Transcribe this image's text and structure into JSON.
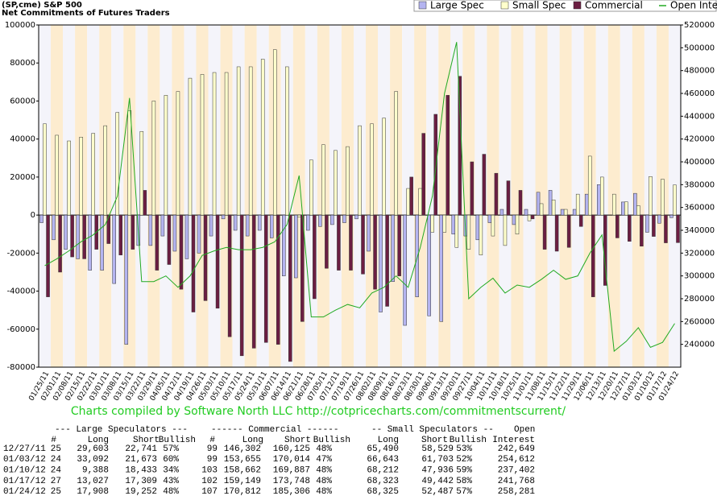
{
  "chart_data": {
    "type": "bar",
    "title": "(SP,cme) S&P 500",
    "subtitle": "Net Commitments of Futures Traders",
    "annotation": "Charts compiled by Software North LLC  http://cotpricecharts.com/commitmentscurrent/",
    "legend": "top-right",
    "categories": [
      "01/25/11",
      "02/01/11",
      "02/08/11",
      "02/15/11",
      "02/22/11",
      "03/01/11",
      "03/08/11",
      "03/15/11",
      "03/22/11",
      "03/29/11",
      "04/05/11",
      "04/12/11",
      "04/19/11",
      "04/26/11",
      "05/03/11",
      "05/10/11",
      "05/17/11",
      "05/24/11",
      "05/31/11",
      "06/07/11",
      "06/14/11",
      "06/21/11",
      "06/28/11",
      "07/05/11",
      "07/12/11",
      "07/19/11",
      "07/26/11",
      "08/02/11",
      "08/09/11",
      "08/16/11",
      "08/23/11",
      "08/30/11",
      "09/06/11",
      "09/13/11",
      "09/20/11",
      "09/27/11",
      "10/04/11",
      "10/11/11",
      "10/18/11",
      "10/25/11",
      "11/01/11",
      "11/08/11",
      "11/15/11",
      "11/22/11",
      "11/29/11",
      "12/06/11",
      "12/13/11",
      "12/20/11",
      "12/27/11",
      "01/03/12",
      "01/10/12",
      "01/17/12",
      "01/24/12"
    ],
    "series": [
      {
        "name": "Large Spec",
        "color": "#b4b4f0",
        "values": [
          -4000,
          -13000,
          -18000,
          -23000,
          -29000,
          -29000,
          -36000,
          -68000,
          -16000,
          -16000,
          -11000,
          -19000,
          -23000,
          -20000,
          -11000,
          -2000,
          -8000,
          -11000,
          -8000,
          -12000,
          -32000,
          -33000,
          -8000,
          -6000,
          -5000,
          -4000,
          -2000,
          -19000,
          -51000,
          -35000,
          -58000,
          -43000,
          -53000,
          -56000,
          -10000,
          -11000,
          -13000,
          -4000,
          3000,
          -5000,
          3000,
          12000,
          13000,
          3000,
          3000,
          11000,
          16000,
          0,
          6862,
          11419,
          -9045,
          -4282,
          -1344
        ]
      },
      {
        "name": "Small Spec",
        "color": "#ffffcc",
        "values": [
          48000,
          42000,
          39000,
          41000,
          43000,
          47000,
          54000,
          55000,
          44000,
          60000,
          63000,
          65000,
          72000,
          74000,
          75000,
          75000,
          78000,
          78000,
          82000,
          87000,
          78000,
          -1000,
          29000,
          37000,
          34000,
          36000,
          47000,
          48000,
          51000,
          65000,
          14000,
          14000,
          -9000,
          -9000,
          -17000,
          -18000,
          -21000,
          -11000,
          -16000,
          -10000,
          -3000,
          6000,
          8000,
          3000,
          11000,
          31000,
          20000,
          11000,
          6961,
          4940,
          20276,
          18881,
          15838
        ]
      },
      {
        "name": "Commercial",
        "color": "#6b1e42",
        "values": [
          -43000,
          -30000,
          -22000,
          -23000,
          -18000,
          -15000,
          -21000,
          -18000,
          13000,
          -29000,
          -26000,
          -39000,
          -51000,
          -45000,
          -49000,
          -64000,
          -74000,
          -70000,
          -67000,
          -68000,
          -77000,
          -56000,
          -44000,
          -28000,
          -29000,
          -29000,
          -31000,
          -39000,
          -48000,
          -32000,
          20000,
          43000,
          53000,
          63000,
          73000,
          28000,
          32000,
          22000,
          18000,
          13000,
          -2000,
          -18000,
          -19000,
          -17000,
          -6000,
          -43000,
          -37000,
          -12000,
          -13823,
          -16359,
          -11225,
          -14599,
          -14494
        ]
      },
      {
        "name": "Open Interest",
        "color": "#22aa22",
        "type": "line",
        "axis": "y2",
        "values": [
          309000,
          315000,
          322000,
          330000,
          336000,
          345000,
          370000,
          456000,
          295000,
          295000,
          300000,
          290000,
          300000,
          318000,
          322000,
          325000,
          323000,
          323000,
          325000,
          330000,
          345000,
          388000,
          264000,
          264000,
          270000,
          275000,
          272000,
          285000,
          290000,
          300000,
          290000,
          325000,
          370000,
          460000,
          505000,
          280000,
          290000,
          298000,
          285000,
          292000,
          290000,
          297000,
          305000,
          297000,
          300000,
          320000,
          336000,
          234000,
          242649,
          254612,
          237402,
          241768,
          258281
        ]
      }
    ],
    "ylim": [
      -80000,
      100000
    ],
    "yticks": [
      -80000,
      -60000,
      -40000,
      -20000,
      0,
      20000,
      40000,
      60000,
      80000,
      100000
    ],
    "y2lim": [
      220000,
      520000
    ],
    "y2ticks": [
      240000,
      260000,
      280000,
      300000,
      320000,
      340000,
      360000,
      380000,
      400000,
      420000,
      440000,
      460000,
      480000,
      500000,
      520000
    ],
    "grid": false
  },
  "table": {
    "group_headers": [
      "--- Large Speculators ---",
      "------ Commercial ------",
      "-- Small Speculators --",
      "Open"
    ],
    "headers": [
      "#",
      "Long",
      "Short",
      "Bullish",
      "#",
      "Long",
      "Short",
      "Bullish",
      "Long",
      "Short",
      "Bullish",
      "Interest"
    ],
    "rows": [
      [
        "12/27/11",
        "25",
        "29,603",
        "22,741",
        "57%",
        "99",
        "146,302",
        "160,125",
        "48%",
        "65,490",
        "58,529",
        "53%",
        "242,649"
      ],
      [
        "01/03/12",
        "24",
        "33,092",
        "21,673",
        "60%",
        "99",
        "153,655",
        "170,014",
        "47%",
        "66,643",
        "61,703",
        "52%",
        "254,612"
      ],
      [
        "01/10/12",
        "24",
        "9,388",
        "18,433",
        "34%",
        "103",
        "158,662",
        "169,887",
        "48%",
        "68,212",
        "47,936",
        "59%",
        "237,402"
      ],
      [
        "01/17/12",
        "27",
        "13,027",
        "17,309",
        "43%",
        "102",
        "159,149",
        "173,748",
        "48%",
        "68,323",
        "49,442",
        "58%",
        "241,768"
      ],
      [
        "01/24/12",
        "25",
        "17,908",
        "19,252",
        "48%",
        "107",
        "170,812",
        "185,306",
        "48%",
        "68,325",
        "52,487",
        "57%",
        "258,281"
      ]
    ]
  }
}
